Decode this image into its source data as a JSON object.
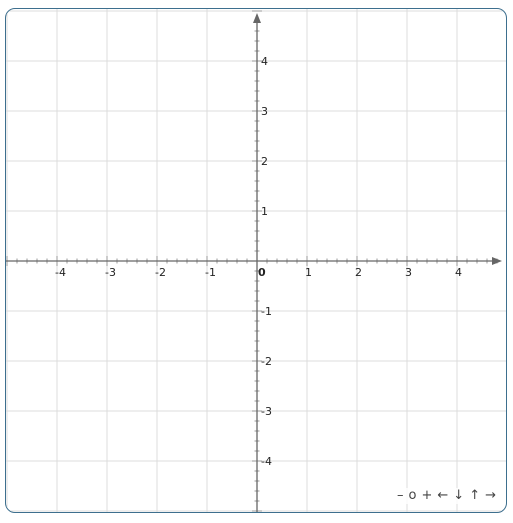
{
  "chart_data": {
    "type": "scatter",
    "title": "",
    "xlabel": "",
    "ylabel": "",
    "xlim": [
      -5,
      5
    ],
    "ylim": [
      -5,
      5
    ],
    "grid": true,
    "x_ticks": [
      "-4",
      "-3",
      "-2",
      "-1",
      "0",
      "1",
      "2",
      "3",
      "4"
    ],
    "y_ticks": [
      "4",
      "3",
      "2",
      "1",
      "-1",
      "-2",
      "-3",
      "-4"
    ],
    "series": []
  },
  "navigation": {
    "zoom_out": "–",
    "zoom_reset": "o",
    "zoom_in": "+",
    "left": "←",
    "down": "↓",
    "up": "↑",
    "right": "→"
  },
  "colors": {
    "grid": "#dcdcdc",
    "axis": "#666666",
    "border": "#3d6f8e"
  }
}
